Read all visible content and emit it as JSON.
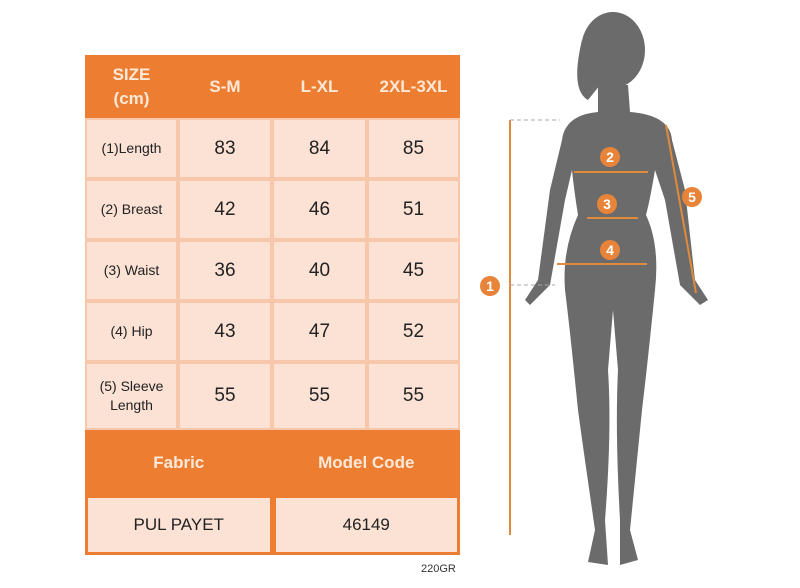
{
  "table": {
    "headers": [
      "SIZE\n(cm)",
      "S-M",
      "L-XL",
      "2XL-3XL"
    ],
    "rows": [
      {
        "label": "(1)Length",
        "values": [
          "83",
          "84",
          "85"
        ]
      },
      {
        "label": "(2) Breast",
        "values": [
          "42",
          "46",
          "51"
        ]
      },
      {
        "label": "(3) Waist",
        "values": [
          "36",
          "40",
          "45"
        ]
      },
      {
        "label": "(4) Hip",
        "values": [
          "43",
          "47",
          "52"
        ]
      },
      {
        "label": "(5) Sleeve Length",
        "values": [
          "55",
          "55",
          "55"
        ]
      }
    ],
    "footer_headers": [
      "Fabric",
      "Model Code"
    ],
    "footer_values": [
      "PUL PAYET",
      "46149"
    ]
  },
  "weight": "220GR",
  "figure": {
    "markers": [
      "1",
      "2",
      "3",
      "4",
      "5"
    ]
  },
  "colors": {
    "accent": "#ed7d31",
    "cell": "#fbe2d5",
    "silhouette": "#6b6b6b"
  }
}
